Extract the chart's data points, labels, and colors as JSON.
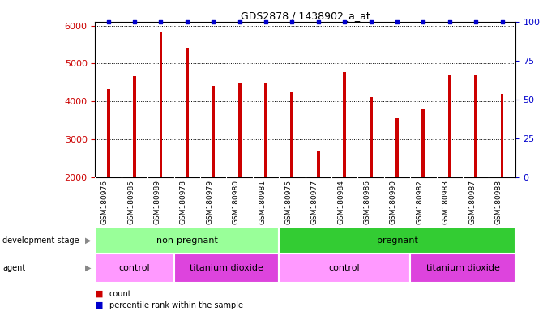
{
  "title": "GDS2878 / 1438902_a_at",
  "samples": [
    "GSM180976",
    "GSM180985",
    "GSM180989",
    "GSM180978",
    "GSM180979",
    "GSM180980",
    "GSM180981",
    "GSM180975",
    "GSM180977",
    "GSM180984",
    "GSM180986",
    "GSM180990",
    "GSM180982",
    "GSM180983",
    "GSM180987",
    "GSM180988"
  ],
  "counts": [
    4330,
    4670,
    5820,
    5420,
    4420,
    4490,
    4490,
    4230,
    2700,
    4780,
    4120,
    3550,
    3820,
    4690,
    4690,
    4190
  ],
  "percentile_ranks": [
    100,
    100,
    100,
    100,
    100,
    100,
    100,
    100,
    100,
    100,
    100,
    100,
    100,
    100,
    100,
    100
  ],
  "bar_color": "#cc0000",
  "percentile_color": "#0000cc",
  "ylim_left": [
    2000,
    6100
  ],
  "ylim_right": [
    0,
    100
  ],
  "yticks_left": [
    2000,
    3000,
    4000,
    5000,
    6000
  ],
  "yticks_right": [
    0,
    25,
    50,
    75,
    100
  ],
  "development_stage_groups": [
    {
      "label": "non-pregnant",
      "start": 0,
      "end": 7,
      "color": "#99ff99"
    },
    {
      "label": "pregnant",
      "start": 7,
      "end": 16,
      "color": "#33cc33"
    }
  ],
  "agent_groups": [
    {
      "label": "control",
      "start": 0,
      "end": 3,
      "color": "#ff99ff"
    },
    {
      "label": "titanium dioxide",
      "start": 3,
      "end": 7,
      "color": "#dd44dd"
    },
    {
      "label": "control",
      "start": 7,
      "end": 12,
      "color": "#ff99ff"
    },
    {
      "label": "titanium dioxide",
      "start": 12,
      "end": 16,
      "color": "#dd44dd"
    }
  ],
  "legend_items": [
    {
      "label": "count",
      "color": "#cc0000"
    },
    {
      "label": "percentile rank within the sample",
      "color": "#0000cc"
    }
  ],
  "background_color": "#ffffff",
  "grid_color": "#000000",
  "tick_label_color_left": "#cc0000",
  "tick_label_color_right": "#0000cc",
  "bar_width": 0.12,
  "xtick_bg_color": "#cccccc",
  "left_label_color": "#555555"
}
